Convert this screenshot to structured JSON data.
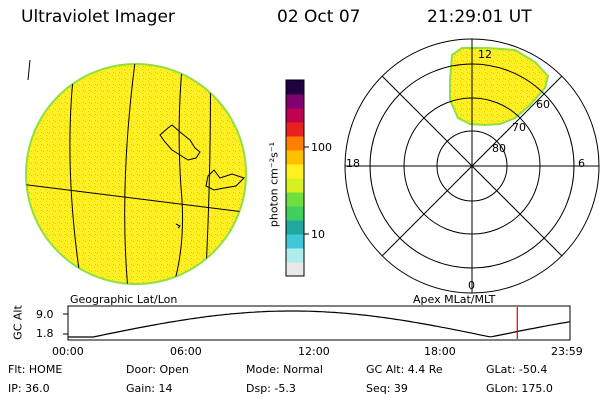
{
  "header": {
    "instrument": "Ultraviolet Imager",
    "date": "02 Oct 07",
    "time": "21:29:01 UT"
  },
  "geo_panel": {
    "caption": "Geographic Lat/Lon"
  },
  "colorbar": {
    "unit_label": "photon cm⁻²s⁻¹",
    "ticks": [
      "100",
      "10"
    ],
    "colors": [
      "#e8e8e8",
      "#b0ecec",
      "#40c8d8",
      "#20a8a0",
      "#40d060",
      "#70e040",
      "#d8f020",
      "#fff020",
      "#ffc000",
      "#ff8000",
      "#e82020",
      "#c00050",
      "#800070",
      "#200040"
    ]
  },
  "polar_panel": {
    "caption": "Apex MLat/MLT",
    "mlt_labels": {
      "top": "12",
      "left": "18",
      "right": "6",
      "bottom": "0"
    },
    "lat_labels": [
      "60",
      "70",
      "80"
    ]
  },
  "timeline": {
    "axis_label": "GC Alt",
    "y_ticks": [
      "9.0",
      "1.8"
    ],
    "x_ticks": [
      "00:00",
      "06:00",
      "12:00",
      "18:00",
      "23:59"
    ],
    "marker_time_hours": 21.48,
    "marker_color": "#e00000"
  },
  "status": {
    "flt": "Flt: HOME",
    "ip": "IP: 36.0",
    "door": "Door: Open",
    "gain": "Gain: 14",
    "mode": "Mode: Normal",
    "dsp": "Dsp:    -5.3",
    "gc_alt": "GC Alt: 4.4 Re",
    "seq": "Seq: 39",
    "glat": "GLat: -50.4",
    "glon": "GLon: 175.0"
  },
  "colors": {
    "image_fill": "#fff020",
    "speckle": "#e8c800",
    "rim": "#90e040"
  }
}
